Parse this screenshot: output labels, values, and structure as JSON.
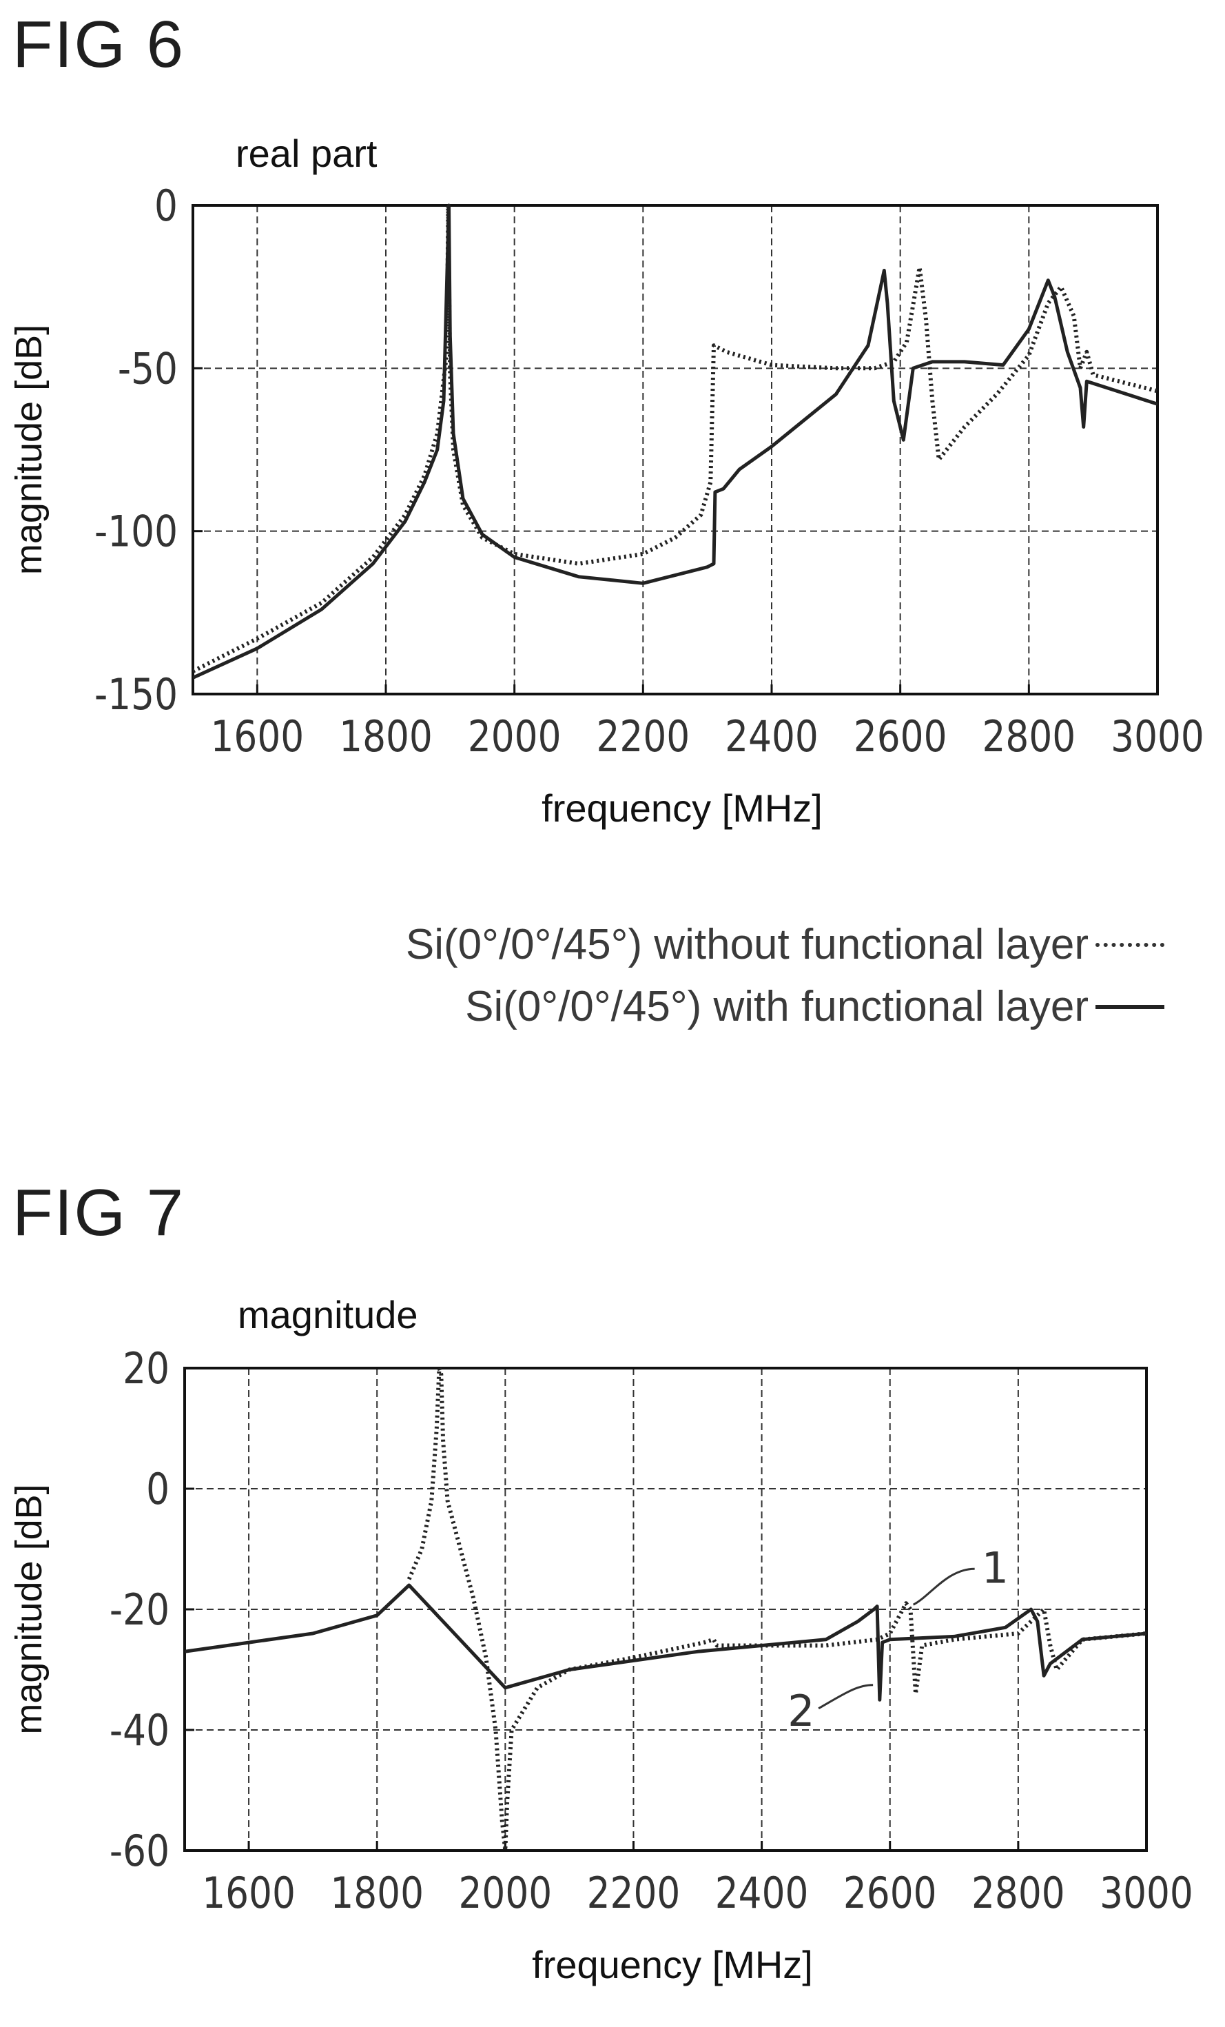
{
  "figures": [
    {
      "label": "FIG 6"
    },
    {
      "label": "FIG 7"
    }
  ],
  "legend": [
    {
      "text": "Si(0°/0°/45°) without functional layer",
      "style": "dotted"
    },
    {
      "text": "Si(0°/0°/45°) with functional layer",
      "style": "solid"
    }
  ],
  "colors": {
    "curve": "#222222",
    "grid": "#333333",
    "axis": "#111111"
  },
  "chart_data": [
    {
      "type": "line",
      "title": "real part",
      "xlabel": "frequency [MHz]",
      "ylabel": "magnitude [dB]",
      "xlim": [
        1500,
        3000
      ],
      "ylim": [
        -150,
        0
      ],
      "xticks": [
        1600,
        1800,
        2000,
        2200,
        2400,
        2600,
        2800,
        3000
      ],
      "yticks": [
        0,
        -50,
        -100,
        -150
      ],
      "grid": true,
      "series": [
        {
          "name": "Si(0°/0°/45°) without functional layer",
          "style": "dotted",
          "x": [
            1500,
            1600,
            1700,
            1780,
            1830,
            1860,
            1880,
            1895,
            1897,
            1900,
            1905,
            1920,
            1950,
            2000,
            2100,
            2200,
            2250,
            2290,
            2305,
            2310,
            2330,
            2400,
            2500,
            2560,
            2590,
            2610,
            2630,
            2640,
            2650,
            2660,
            2700,
            2750,
            2800,
            2830,
            2850,
            2870,
            2880,
            2890,
            2900,
            3000
          ],
          "y": [
            -143,
            -133,
            -122,
            -108,
            -95,
            -83,
            -70,
            -45,
            0,
            -52,
            -75,
            -92,
            -102,
            -107,
            -110,
            -107,
            -102,
            -95,
            -85,
            -43,
            -45,
            -49,
            -50,
            -50,
            -48,
            -42,
            -19,
            -35,
            -60,
            -78,
            -68,
            -58,
            -46,
            -30,
            -25,
            -34,
            -50,
            -45,
            -52,
            -57
          ]
        },
        {
          "name": "Si(0°/0°/45°) with functional layer",
          "style": "solid",
          "x": [
            1500,
            1600,
            1700,
            1780,
            1830,
            1860,
            1880,
            1890,
            1898,
            1900,
            1905,
            1920,
            1950,
            2000,
            2100,
            2200,
            2300,
            2310,
            2312,
            2325,
            2350,
            2400,
            2500,
            2550,
            2575,
            2580,
            2590,
            2605,
            2620,
            2650,
            2700,
            2760,
            2800,
            2830,
            2840,
            2860,
            2880,
            2885,
            2890,
            3000
          ],
          "y": [
            -145,
            -136,
            -124,
            -110,
            -97,
            -85,
            -75,
            -60,
            0,
            -40,
            -70,
            -90,
            -101,
            -108,
            -114,
            -116,
            -111,
            -110,
            -88,
            -87,
            -81,
            -74,
            -58,
            -43,
            -20,
            -30,
            -60,
            -72,
            -50,
            -48,
            -48,
            -49,
            -38,
            -23,
            -28,
            -45,
            -56,
            -68,
            -54,
            -61
          ]
        }
      ]
    },
    {
      "type": "line",
      "title": "magnitude",
      "xlabel": "frequency [MHz]",
      "ylabel": "magnitude [dB]",
      "xlim": [
        1500,
        3000
      ],
      "ylim": [
        -60,
        20
      ],
      "xticks": [
        1600,
        1800,
        2000,
        2200,
        2400,
        2600,
        2800,
        3000
      ],
      "yticks": [
        20,
        0,
        -20,
        -40,
        -60
      ],
      "grid": true,
      "annotations": [
        {
          "text": "1",
          "x": 2630,
          "y": -19
        },
        {
          "text": "2",
          "x": 2580,
          "y": -33
        }
      ],
      "series": [
        {
          "name": "1",
          "style": "dotted",
          "x": [
            1850,
            1870,
            1885,
            1893,
            1897,
            1900,
            1903,
            1910,
            1930,
            1950,
            1970,
            1985,
            1995,
            2000,
            2003,
            2010,
            2050,
            2100,
            2200,
            2310,
            2325,
            2330,
            2400,
            2500,
            2580,
            2600,
            2615,
            2625,
            2632,
            2640,
            2650,
            2700,
            2800,
            2840,
            2850,
            2860,
            2900,
            3000
          ],
          "y": [
            -15,
            -10,
            -2,
            10,
            20,
            19,
            8,
            -2,
            -10,
            -18,
            -28,
            -40,
            -55,
            -60,
            -52,
            -40,
            -33,
            -30,
            -28,
            -25.5,
            -25,
            -26,
            -26,
            -26,
            -25,
            -24,
            -21,
            -19,
            -20,
            -34,
            -26,
            -25,
            -24,
            -20,
            -26,
            -30,
            -25,
            -24
          ]
        },
        {
          "name": "2",
          "style": "solid",
          "x": [
            1500,
            1600,
            1700,
            1800,
            1850,
            2000,
            2100,
            2200,
            2300,
            2400,
            2500,
            2550,
            2575,
            2580,
            2584,
            2588,
            2600,
            2700,
            2780,
            2820,
            2830,
            2840,
            2850,
            2900,
            3000
          ],
          "y": [
            -27,
            -25.5,
            -24,
            -21,
            -16,
            -33,
            -30,
            -28.5,
            -27,
            -26,
            -25,
            -22,
            -20,
            -19.5,
            -35,
            -25.5,
            -25,
            -24.5,
            -23,
            -20,
            -22,
            -31,
            -29,
            -25,
            -24
          ]
        }
      ]
    }
  ]
}
